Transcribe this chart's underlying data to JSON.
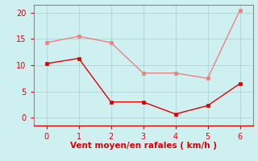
{
  "x": [
    0,
    1,
    2,
    3,
    4,
    5,
    6
  ],
  "y_dark": [
    10.3,
    11.3,
    3.0,
    3.0,
    0.7,
    2.3,
    6.5
  ],
  "y_light": [
    14.3,
    15.5,
    14.3,
    8.5,
    8.5,
    7.5,
    20.5
  ],
  "color_dark": "#dd0000",
  "color_light": "#f08080",
  "bg_color": "#cff0f0",
  "grid_color": "#aad4d4",
  "xlabel": "Vent moyen/en rafales ( km/h )",
  "xlabel_color": "#dd0000",
  "axis_color": "#888888",
  "tick_color": "#dd0000",
  "ylim": [
    -1.5,
    21.5
  ],
  "xlim": [
    -0.4,
    6.4
  ],
  "yticks": [
    0,
    5,
    10,
    15,
    20
  ],
  "xticks": [
    0,
    1,
    2,
    3,
    4,
    5,
    6
  ],
  "tick_fontsize": 7,
  "xlabel_fontsize": 7.5
}
